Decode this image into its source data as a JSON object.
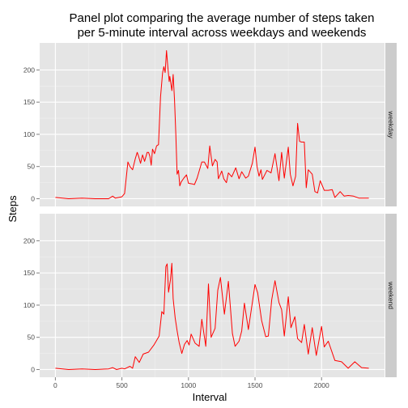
{
  "chart_data": {
    "type": "line",
    "title_lines": [
      "Panel plot comparing the average number of steps taken",
      "per 5-minute interval across weekdays and weekends"
    ],
    "xlabel": "Interval",
    "ylabel": "Steps",
    "xlim": [
      -118,
      2473
    ],
    "ylim": [
      -12,
      242
    ],
    "x_ticks": [
      0,
      500,
      1000,
      1500,
      2000
    ],
    "x_tick_labels": [
      "0",
      "500",
      "1000",
      "1500",
      "2000"
    ],
    "y_ticks": [
      0,
      50,
      100,
      150,
      200
    ],
    "y_tick_labels": [
      "0",
      "50",
      "100",
      "150",
      "200"
    ],
    "grid": true,
    "line_color": "#ff0000",
    "panels": [
      {
        "name": "weekday",
        "x": [
          0,
          100,
          200,
          300,
          400,
          430,
          450,
          500,
          520,
          545,
          560,
          580,
          600,
          615,
          625,
          640,
          655,
          670,
          690,
          700,
          710,
          720,
          730,
          745,
          760,
          775,
          790,
          805,
          815,
          825,
          835,
          845,
          855,
          860,
          875,
          885,
          895,
          905,
          915,
          925,
          935,
          945,
          965,
          985,
          1000,
          1030,
          1045,
          1065,
          1100,
          1120,
          1145,
          1160,
          1180,
          1200,
          1215,
          1225,
          1250,
          1265,
          1285,
          1300,
          1325,
          1355,
          1380,
          1400,
          1430,
          1450,
          1480,
          1500,
          1515,
          1530,
          1545,
          1555,
          1575,
          1590,
          1620,
          1650,
          1680,
          1700,
          1720,
          1750,
          1765,
          1785,
          1805,
          1820,
          1835,
          1850,
          1870,
          1885,
          1900,
          1930,
          1950,
          1970,
          1990,
          2020,
          2050,
          2080,
          2100,
          2140,
          2170,
          2200,
          2240,
          2280,
          2355
        ],
        "values": [
          2,
          0,
          1,
          0,
          0,
          4,
          1,
          3,
          8,
          57,
          50,
          45,
          62,
          72,
          66,
          55,
          68,
          58,
          72,
          72,
          66,
          52,
          77,
          70,
          82,
          84,
          158,
          195,
          205,
          196,
          230,
          205,
          182,
          190,
          168,
          193,
          153,
          100,
          38,
          44,
          20,
          26,
          32,
          37,
          24,
          23,
          22,
          32,
          57,
          57,
          47,
          82,
          51,
          61,
          57,
          31,
          43,
          31,
          25,
          40,
          34,
          48,
          31,
          42,
          32,
          35,
          55,
          80,
          50,
          35,
          45,
          30,
          38,
          44,
          40,
          70,
          28,
          72,
          32,
          80,
          38,
          20,
          35,
          117,
          89,
          88,
          88,
          17,
          45,
          38,
          11,
          9,
          28,
          13,
          13,
          14,
          2,
          11,
          4,
          5,
          4,
          1,
          1
        ]
      },
      {
        "name": "weekend",
        "x": [
          0,
          100,
          200,
          300,
          400,
          430,
          460,
          500,
          520,
          540,
          560,
          580,
          600,
          630,
          660,
          700,
          740,
          780,
          800,
          815,
          830,
          840,
          850,
          865,
          875,
          885,
          900,
          915,
          930,
          950,
          970,
          990,
          1005,
          1020,
          1050,
          1080,
          1100,
          1130,
          1150,
          1170,
          1200,
          1220,
          1240,
          1270,
          1300,
          1330,
          1350,
          1380,
          1400,
          1420,
          1450,
          1500,
          1520,
          1550,
          1580,
          1600,
          1625,
          1650,
          1680,
          1700,
          1720,
          1750,
          1770,
          1800,
          1820,
          1850,
          1870,
          1900,
          1930,
          1960,
          2000,
          2020,
          2050,
          2100,
          2150,
          2200,
          2250,
          2300,
          2355
        ],
        "values": [
          2,
          0,
          1,
          0,
          1,
          3,
          0,
          2,
          1,
          3,
          5,
          2,
          20,
          11,
          24,
          27,
          38,
          52,
          90,
          86,
          160,
          164,
          120,
          140,
          165,
          110,
          80,
          60,
          42,
          25,
          39,
          45,
          38,
          55,
          41,
          36,
          78,
          36,
          133,
          50,
          64,
          123,
          143,
          86,
          137,
          56,
          36,
          44,
          60,
          103,
          62,
          132,
          119,
          76,
          51,
          52,
          108,
          138,
          104,
          93,
          52,
          113,
          65,
          82,
          48,
          42,
          70,
          24,
          65,
          22,
          67,
          35,
          44,
          14,
          12,
          2,
          12,
          3,
          2
        ]
      }
    ]
  }
}
